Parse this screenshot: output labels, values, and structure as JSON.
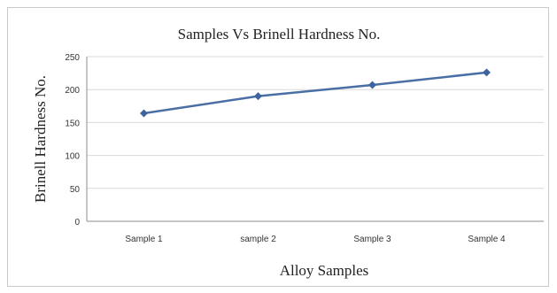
{
  "chart_data": {
    "type": "line",
    "title": "Samples Vs Brinell Hardness No.",
    "xlabel": "Alloy Samples",
    "ylabel": "Brinell Hardness No.",
    "categories": [
      "Sample 1",
      "sample 2",
      "Sample 3",
      "Sample 4"
    ],
    "series": [
      {
        "values": [
          164,
          190,
          207,
          226
        ]
      }
    ],
    "ylim": [
      0,
      250
    ],
    "yticks": [
      0,
      50,
      100,
      150,
      200,
      250
    ],
    "grid": true,
    "legend": "none",
    "colors": {
      "line": "#4a6fa5",
      "marker": "#3e64a0",
      "grid": "#d9d9d9"
    }
  }
}
